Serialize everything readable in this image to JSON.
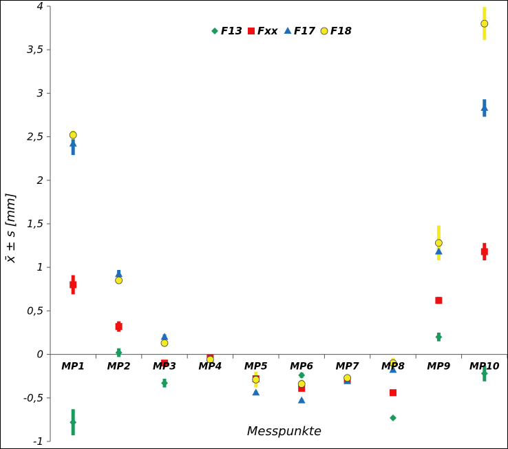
{
  "chart_data": {
    "type": "scatter",
    "xlabel": "Messpunkte",
    "ylabel": "x̄ ± s [mm]",
    "ylim": [
      -1,
      4
    ],
    "yticks": [
      -1,
      -0.5,
      0,
      0.5,
      1,
      1.5,
      2,
      2.5,
      3,
      3.5,
      4
    ],
    "ytick_labels": [
      "-1",
      "-0,5",
      "0",
      "0,5",
      "1",
      "1,5",
      "2",
      "2,5",
      "3",
      "3,5",
      "4"
    ],
    "categories": [
      "MP1",
      "MP2",
      "MP3",
      "MP4",
      "MP5",
      "MP6",
      "MP7",
      "MP8",
      "MP9",
      "MP10"
    ],
    "grid": false,
    "legend_position": "top-center",
    "series": [
      {
        "name": "F13",
        "marker": "diamond",
        "color": "#1a9a5c",
        "values": [
          -0.78,
          0.02,
          -0.33,
          null,
          null,
          -0.24,
          null,
          -0.73,
          0.2,
          -0.22
        ],
        "errors": [
          0.15,
          0.05,
          0.05,
          null,
          null,
          0.03,
          null,
          0.02,
          0.05,
          0.09
        ]
      },
      {
        "name": "Fxx",
        "marker": "square",
        "color": "#ee1111",
        "values": [
          0.8,
          0.32,
          -0.1,
          -0.04,
          -0.28,
          -0.39,
          -0.29,
          -0.44,
          0.62,
          1.18
        ],
        "errors": [
          0.11,
          0.06,
          0.02,
          0.03,
          0.03,
          0.03,
          0.02,
          0.02,
          0.04,
          0.1
        ]
      },
      {
        "name": "F17",
        "marker": "triangle",
        "color": "#1f6fb8",
        "values": [
          2.42,
          0.92,
          0.2,
          -0.05,
          -0.44,
          -0.53,
          -0.31,
          -0.18,
          1.18,
          2.83
        ],
        "errors": [
          0.13,
          0.05,
          0.03,
          0.02,
          0.02,
          0.02,
          0.02,
          0.02,
          0.05,
          0.1
        ]
      },
      {
        "name": "F18",
        "marker": "circle",
        "color": "#f5ea22",
        "values": [
          2.52,
          0.85,
          0.13,
          -0.06,
          -0.29,
          -0.34,
          -0.27,
          -0.1,
          1.28,
          3.8
        ],
        "errors": [
          0.05,
          0.03,
          0.04,
          0.02,
          0.09,
          0.05,
          0.02,
          0.06,
          0.2,
          0.19
        ]
      }
    ]
  }
}
